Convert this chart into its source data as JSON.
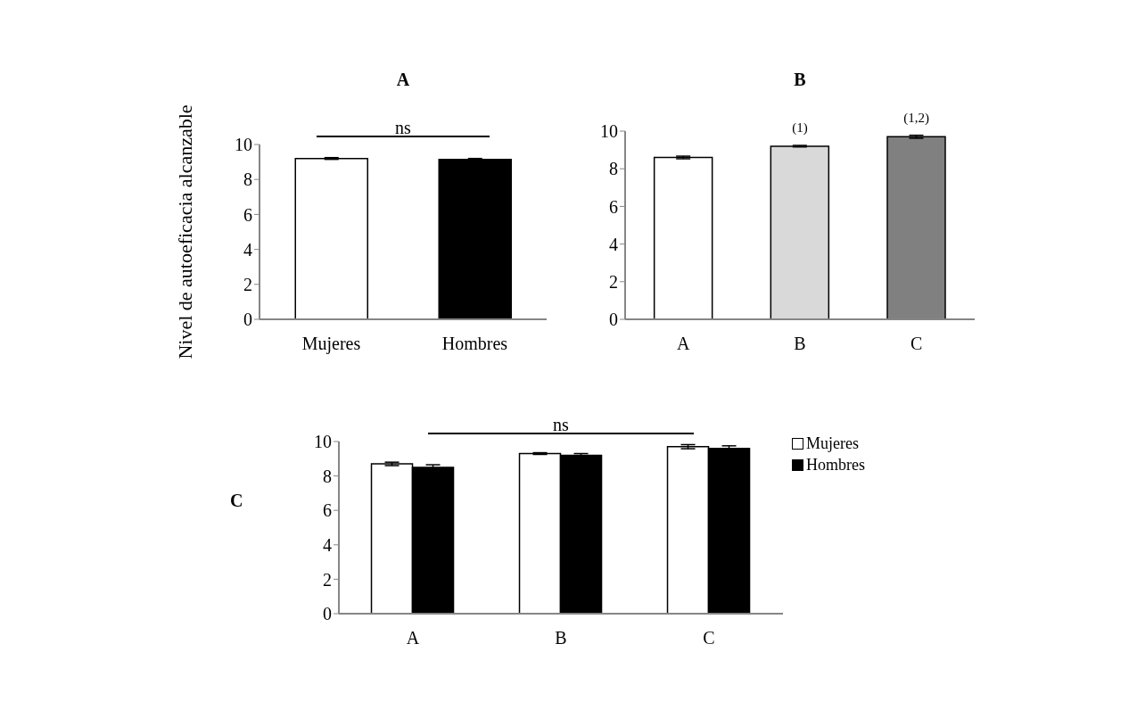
{
  "chart_data": [
    {
      "type": "bar",
      "title": "A",
      "ylabel": "Nivel de autoeficacia alcanzable",
      "categories": [
        "Mujeres",
        "Hombres"
      ],
      "values": [
        9.2,
        9.15
      ],
      "errors": [
        0.05,
        0.05
      ],
      "colors": [
        "#ffffff",
        "#000000"
      ],
      "ylim": [
        0,
        10
      ],
      "yticks": [
        0,
        2,
        4,
        6,
        8,
        10
      ],
      "grid": false,
      "annotations": [
        "ns"
      ]
    },
    {
      "type": "bar",
      "title": "B",
      "categories": [
        "A",
        "B",
        "C"
      ],
      "values": [
        8.6,
        9.2,
        9.7
      ],
      "errors": [
        0.07,
        0.04,
        0.08
      ],
      "colors": [
        "#ffffff",
        "#d9d9d9",
        "#808080"
      ],
      "ylim": [
        0,
        10
      ],
      "yticks": [
        0,
        2,
        4,
        6,
        8,
        10
      ],
      "grid": false,
      "annotations": [
        {
          "text": "(1)",
          "x": "B",
          "y": 9.2
        },
        {
          "text": "(1,2)",
          "x": "C",
          "y": 9.7
        }
      ]
    },
    {
      "type": "bar",
      "title": "C",
      "categories": [
        "A",
        "B",
        "C"
      ],
      "series": [
        {
          "name": "Mujeres",
          "color": "#ffffff",
          "values": [
            8.7,
            9.3,
            9.7
          ],
          "errors": [
            0.1,
            0.05,
            0.12
          ]
        },
        {
          "name": "Hombres",
          "color": "#000000",
          "values": [
            8.5,
            9.2,
            9.6
          ],
          "errors": [
            0.15,
            0.1,
            0.15
          ]
        }
      ],
      "ylim": [
        0,
        10
      ],
      "yticks": [
        0,
        2,
        4,
        6,
        8,
        10
      ],
      "grid": false,
      "legend": "right",
      "annotations": [
        "ns"
      ]
    }
  ]
}
